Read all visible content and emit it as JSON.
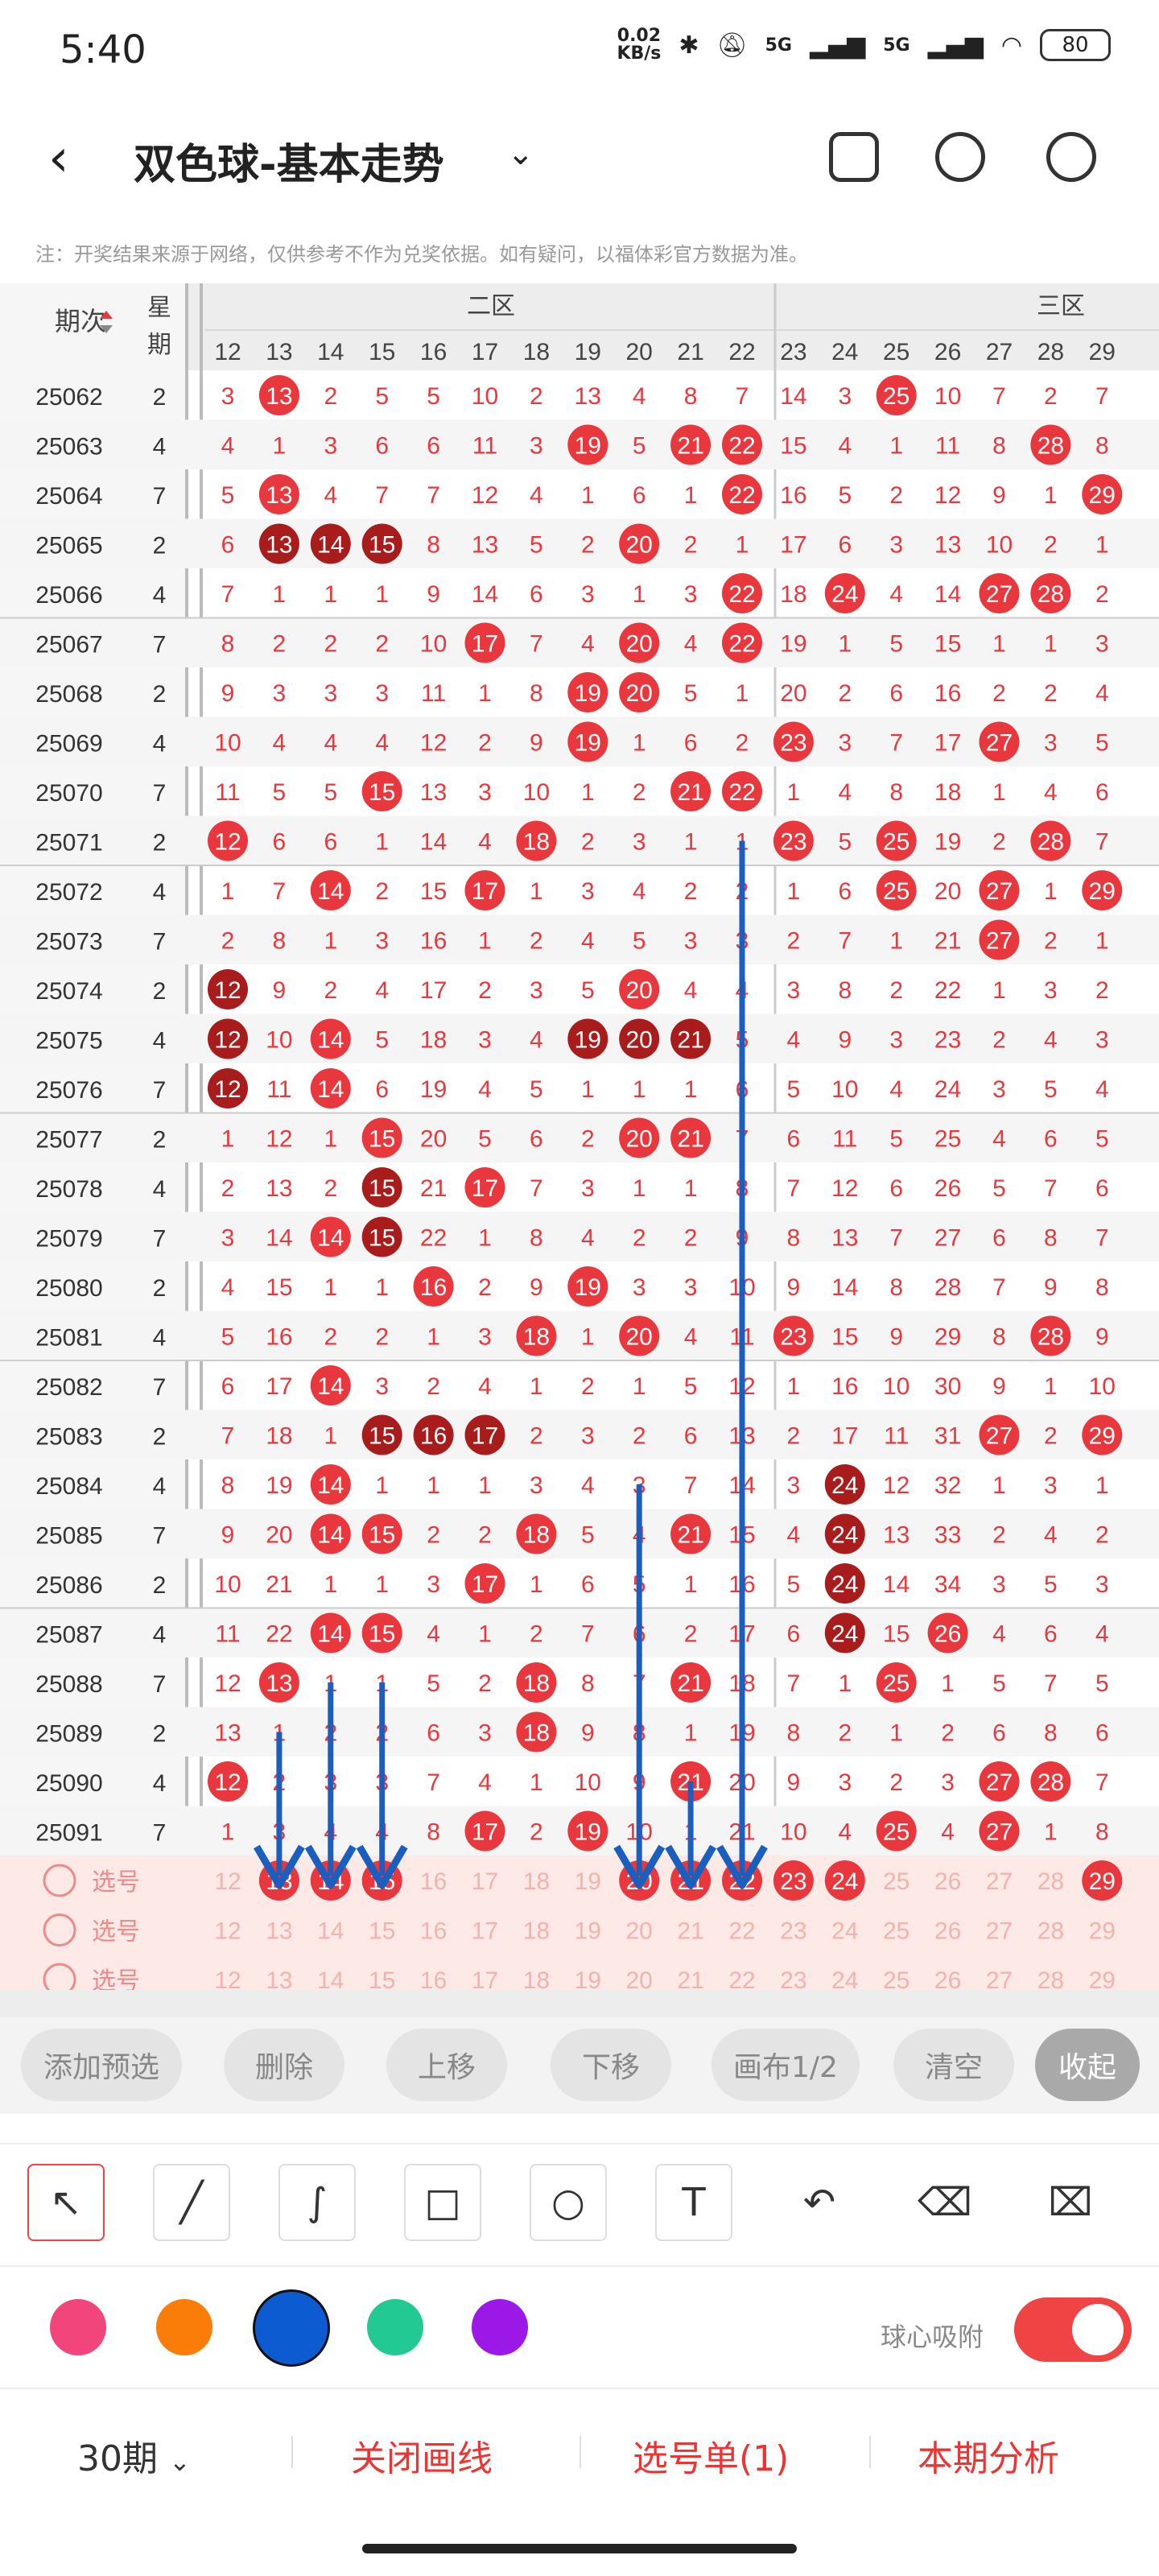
{
  "status_bar": {
    "time": "5:40",
    "net_speed_value": "0.02",
    "net_speed_unit": "KB/s",
    "signal_1": "5G",
    "signal_2": "5G",
    "battery": "80"
  },
  "header": {
    "title": "双色球-基本走势"
  },
  "note": "注：开奖结果来源于网络，仅供参考不作为兑奖依据。如有疑问，以福体彩官方数据为准。",
  "table": {
    "col_period": "期次",
    "col_weekday_1": "星",
    "col_weekday_2": "期",
    "zone2": "二区",
    "zone3": "三区",
    "numbers": [
      "12",
      "13",
      "14",
      "15",
      "16",
      "17",
      "18",
      "19",
      "20",
      "21",
      "22",
      "23",
      "24",
      "25",
      "26",
      "27",
      "28",
      "29"
    ],
    "rows": [
      {
        "p": "25062",
        "w": "2",
        "c": [
          "3",
          "13",
          "2",
          "5",
          "5",
          "10",
          "2",
          "13",
          "4",
          "8",
          "7",
          "14",
          "3",
          "25",
          "10",
          "7",
          "2",
          "7"
        ],
        "hit": [
          1,
          13
        ]
      },
      {
        "p": "25063",
        "w": "4",
        "c": [
          "4",
          "1",
          "3",
          "6",
          "6",
          "11",
          "3",
          "19",
          "5",
          "21",
          "22",
          "15",
          "4",
          "1",
          "11",
          "8",
          "28",
          "8"
        ],
        "hit": [
          7,
          9,
          10,
          16
        ]
      },
      {
        "p": "25064",
        "w": "7",
        "c": [
          "5",
          "13",
          "4",
          "7",
          "7",
          "12",
          "4",
          "1",
          "6",
          "1",
          "22",
          "16",
          "5",
          "2",
          "12",
          "9",
          "1",
          "29"
        ],
        "hit": [
          1,
          10,
          17
        ]
      },
      {
        "p": "25065",
        "w": "2",
        "c": [
          "6",
          "13",
          "14",
          "15",
          "8",
          "13",
          "5",
          "2",
          "20",
          "2",
          "1",
          "17",
          "6",
          "3",
          "13",
          "10",
          "2",
          "1"
        ],
        "hit": [
          1,
          2,
          3,
          8
        ],
        "dark": [
          1,
          2,
          3
        ]
      },
      {
        "p": "25066",
        "w": "4",
        "c": [
          "7",
          "1",
          "1",
          "1",
          "9",
          "14",
          "6",
          "3",
          "1",
          "3",
          "22",
          "18",
          "24",
          "4",
          "14",
          "27",
          "28",
          "2"
        ],
        "hit": [
          10,
          12,
          15,
          16
        ]
      },
      {
        "p": "25067",
        "w": "7",
        "c": [
          "8",
          "2",
          "2",
          "2",
          "10",
          "17",
          "7",
          "4",
          "20",
          "4",
          "22",
          "19",
          "1",
          "5",
          "15",
          "1",
          "1",
          "3"
        ],
        "hit": [
          5,
          8,
          10
        ]
      },
      {
        "p": "25068",
        "w": "2",
        "c": [
          "9",
          "3",
          "3",
          "3",
          "11",
          "1",
          "8",
          "19",
          "20",
          "5",
          "1",
          "20",
          "2",
          "6",
          "16",
          "2",
          "2",
          "4"
        ],
        "hit": [
          7,
          8
        ]
      },
      {
        "p": "25069",
        "w": "4",
        "c": [
          "10",
          "4",
          "4",
          "4",
          "12",
          "2",
          "9",
          "19",
          "1",
          "6",
          "2",
          "23",
          "3",
          "7",
          "17",
          "27",
          "3",
          "5"
        ],
        "hit": [
          7,
          11,
          15
        ]
      },
      {
        "p": "25070",
        "w": "7",
        "c": [
          "11",
          "5",
          "5",
          "15",
          "13",
          "3",
          "10",
          "1",
          "2",
          "21",
          "22",
          "1",
          "4",
          "8",
          "18",
          "1",
          "4",
          "6"
        ],
        "hit": [
          3,
          9,
          10
        ]
      },
      {
        "p": "25071",
        "w": "2",
        "c": [
          "12",
          "6",
          "6",
          "1",
          "14",
          "4",
          "18",
          "2",
          "3",
          "1",
          "1",
          "23",
          "5",
          "25",
          "19",
          "2",
          "28",
          "7"
        ],
        "hit": [
          0,
          6,
          11,
          13,
          16
        ]
      },
      {
        "p": "25072",
        "w": "4",
        "c": [
          "1",
          "7",
          "14",
          "2",
          "15",
          "17",
          "1",
          "3",
          "4",
          "2",
          "2",
          "1",
          "6",
          "25",
          "20",
          "27",
          "1",
          "29"
        ],
        "hit": [
          2,
          5,
          13,
          15,
          17
        ]
      },
      {
        "p": "25073",
        "w": "7",
        "c": [
          "2",
          "8",
          "1",
          "3",
          "16",
          "1",
          "2",
          "4",
          "5",
          "3",
          "3",
          "2",
          "7",
          "1",
          "21",
          "27",
          "2",
          "1"
        ],
        "hit": [
          15
        ]
      },
      {
        "p": "25074",
        "w": "2",
        "c": [
          "12",
          "9",
          "2",
          "4",
          "17",
          "2",
          "3",
          "5",
          "20",
          "4",
          "4",
          "3",
          "8",
          "2",
          "22",
          "1",
          "3",
          "2"
        ],
        "hit": [
          0,
          8
        ],
        "dark": [
          0
        ]
      },
      {
        "p": "25075",
        "w": "4",
        "c": [
          "12",
          "10",
          "14",
          "5",
          "18",
          "3",
          "4",
          "19",
          "20",
          "21",
          "5",
          "4",
          "9",
          "3",
          "23",
          "2",
          "4",
          "3"
        ],
        "hit": [
          0,
          2,
          7,
          8,
          9
        ],
        "dark": [
          0,
          7,
          8,
          9
        ]
      },
      {
        "p": "25076",
        "w": "7",
        "c": [
          "12",
          "11",
          "14",
          "6",
          "19",
          "4",
          "5",
          "1",
          "1",
          "1",
          "6",
          "5",
          "10",
          "4",
          "24",
          "3",
          "5",
          "4"
        ],
        "hit": [
          0,
          2
        ],
        "dark": [
          0
        ]
      },
      {
        "p": "25077",
        "w": "2",
        "c": [
          "1",
          "12",
          "1",
          "15",
          "20",
          "5",
          "6",
          "2",
          "20",
          "21",
          "7",
          "6",
          "11",
          "5",
          "25",
          "4",
          "6",
          "5"
        ],
        "hit": [
          3,
          8,
          9
        ]
      },
      {
        "p": "25078",
        "w": "4",
        "c": [
          "2",
          "13",
          "2",
          "15",
          "21",
          "17",
          "7",
          "3",
          "1",
          "1",
          "8",
          "7",
          "12",
          "6",
          "26",
          "5",
          "7",
          "6"
        ],
        "hit": [
          3,
          5
        ],
        "dark": [
          3
        ]
      },
      {
        "p": "25079",
        "w": "7",
        "c": [
          "3",
          "14",
          "14",
          "15",
          "22",
          "1",
          "8",
          "4",
          "2",
          "2",
          "9",
          "8",
          "13",
          "7",
          "27",
          "6",
          "8",
          "7"
        ],
        "hit": [
          2,
          3
        ],
        "dark": [
          3
        ]
      },
      {
        "p": "25080",
        "w": "2",
        "c": [
          "4",
          "15",
          "1",
          "1",
          "16",
          "2",
          "9",
          "19",
          "3",
          "3",
          "10",
          "9",
          "14",
          "8",
          "28",
          "7",
          "9",
          "8"
        ],
        "hit": [
          4,
          7
        ]
      },
      {
        "p": "25081",
        "w": "4",
        "c": [
          "5",
          "16",
          "2",
          "2",
          "1",
          "3",
          "18",
          "1",
          "20",
          "4",
          "11",
          "23",
          "15",
          "9",
          "29",
          "8",
          "28",
          "9"
        ],
        "hit": [
          6,
          8,
          11,
          16
        ]
      },
      {
        "p": "25082",
        "w": "7",
        "c": [
          "6",
          "17",
          "14",
          "3",
          "2",
          "4",
          "1",
          "2",
          "1",
          "5",
          "12",
          "1",
          "16",
          "10",
          "30",
          "9",
          "1",
          "10"
        ],
        "hit": [
          2
        ]
      },
      {
        "p": "25083",
        "w": "2",
        "c": [
          "7",
          "18",
          "1",
          "15",
          "16",
          "17",
          "2",
          "3",
          "2",
          "6",
          "13",
          "2",
          "17",
          "11",
          "31",
          "27",
          "2",
          "29"
        ],
        "hit": [
          3,
          4,
          5,
          15,
          17
        ],
        "dark": [
          3,
          4,
          5
        ]
      },
      {
        "p": "25084",
        "w": "4",
        "c": [
          "8",
          "19",
          "14",
          "1",
          "1",
          "1",
          "3",
          "4",
          "3",
          "7",
          "14",
          "3",
          "24",
          "12",
          "32",
          "1",
          "3",
          "1"
        ],
        "hit": [
          2,
          12
        ],
        "dark": [
          12
        ]
      },
      {
        "p": "25085",
        "w": "7",
        "c": [
          "9",
          "20",
          "14",
          "15",
          "2",
          "2",
          "18",
          "5",
          "4",
          "21",
          "15",
          "4",
          "24",
          "13",
          "33",
          "2",
          "4",
          "2"
        ],
        "hit": [
          2,
          3,
          6,
          9,
          12
        ],
        "dark": [
          12
        ]
      },
      {
        "p": "25086",
        "w": "2",
        "c": [
          "10",
          "21",
          "1",
          "1",
          "3",
          "17",
          "1",
          "6",
          "5",
          "1",
          "16",
          "5",
          "24",
          "14",
          "34",
          "3",
          "5",
          "3"
        ],
        "hit": [
          5,
          12
        ],
        "dark": [
          12
        ]
      },
      {
        "p": "25087",
        "w": "4",
        "c": [
          "11",
          "22",
          "14",
          "15",
          "4",
          "1",
          "2",
          "7",
          "6",
          "2",
          "17",
          "6",
          "24",
          "15",
          "26",
          "4",
          "6",
          "4"
        ],
        "hit": [
          2,
          3,
          12,
          14
        ],
        "dark": [
          12
        ]
      },
      {
        "p": "25088",
        "w": "7",
        "c": [
          "12",
          "13",
          "1",
          "1",
          "5",
          "2",
          "18",
          "8",
          "7",
          "21",
          "18",
          "7",
          "1",
          "25",
          "1",
          "5",
          "7",
          "5"
        ],
        "hit": [
          1,
          6,
          9,
          13
        ]
      },
      {
        "p": "25089",
        "w": "2",
        "c": [
          "13",
          "1",
          "2",
          "2",
          "6",
          "3",
          "18",
          "9",
          "8",
          "1",
          "19",
          "8",
          "2",
          "1",
          "2",
          "6",
          "8",
          "6"
        ],
        "hit": [
          6
        ]
      },
      {
        "p": "25090",
        "w": "4",
        "c": [
          "12",
          "2",
          "3",
          "3",
          "7",
          "4",
          "1",
          "10",
          "9",
          "21",
          "20",
          "9",
          "3",
          "2",
          "3",
          "27",
          "28",
          "7"
        ],
        "hit": [
          0,
          9,
          15,
          16
        ]
      },
      {
        "p": "25091",
        "w": "7",
        "c": [
          "1",
          "3",
          "4",
          "4",
          "8",
          "17",
          "2",
          "19",
          "10",
          "1",
          "21",
          "10",
          "4",
          "25",
          "4",
          "27",
          "1",
          "8"
        ],
        "hit": [
          5,
          7,
          13,
          15
        ]
      }
    ],
    "picks": [
      {
        "label": "选号",
        "sel": [
          1,
          2,
          3,
          8,
          9,
          10,
          11,
          12,
          17
        ],
        "c": [
          "12",
          "13",
          "14",
          "15",
          "16",
          "17",
          "18",
          "19",
          "20",
          "21",
          "22",
          "23",
          "24",
          "25",
          "26",
          "27",
          "28",
          "29"
        ]
      },
      {
        "label": "选号",
        "sel": [],
        "c": [
          "12",
          "13",
          "14",
          "15",
          "16",
          "17",
          "18",
          "19",
          "20",
          "21",
          "22",
          "23",
          "24",
          "25",
          "26",
          "27",
          "28",
          "29"
        ]
      },
      {
        "label": "选号",
        "sel": [],
        "c": [
          "12",
          "13",
          "14",
          "15",
          "16",
          "17",
          "18",
          "19",
          "20",
          "21",
          "22",
          "23",
          "24",
          "25",
          "26",
          "27",
          "28",
          "29"
        ]
      }
    ]
  },
  "actions": {
    "add": "添加预选",
    "delete": "删除",
    "up": "上移",
    "down": "下移",
    "canvas": "画布1/2",
    "clear": "清空",
    "collapse": "收起"
  },
  "colors": {
    "red": "#e8383d",
    "dark_red": "#a81c1c",
    "arrow_blue": "#1a5fbf",
    "pink": "#f2457c",
    "orange": "#fa7d0a",
    "blue": "#0c5bd0",
    "green": "#22c993",
    "purple": "#9b18e6"
  },
  "draw": {
    "snap_label": "球心吸附"
  },
  "bottom": {
    "period": "30期",
    "close_lines": "关闭画线",
    "pick_list": "选号单(1)",
    "analysis": "本期分析"
  }
}
